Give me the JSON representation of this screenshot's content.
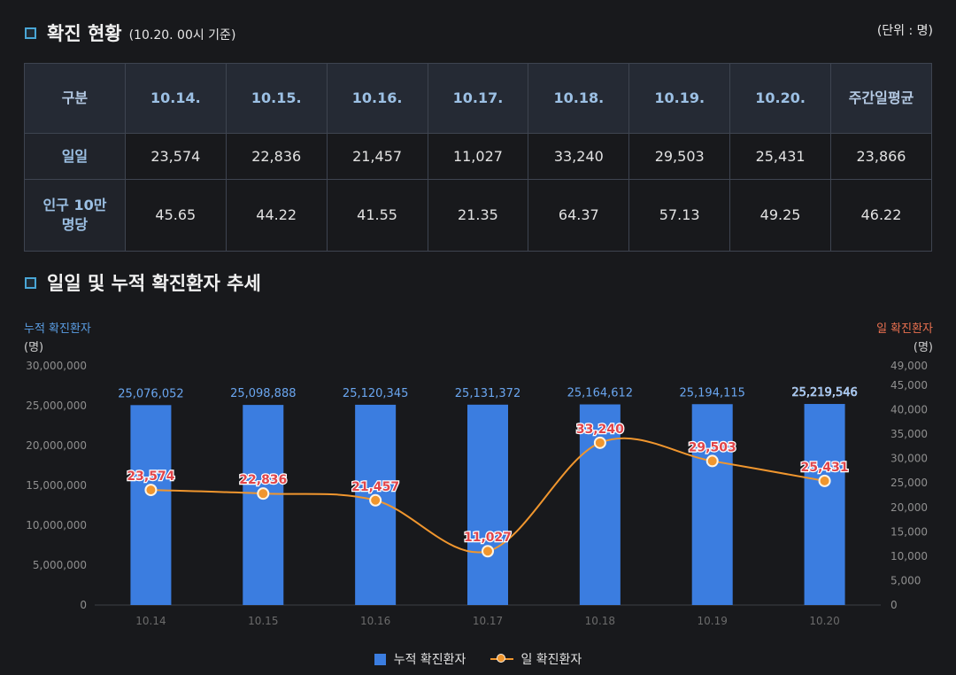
{
  "section1": {
    "title": "확진 현황",
    "subtitle": "(10.20. 00시 기준)",
    "unit": "(단위 : 명)"
  },
  "table": {
    "header": [
      "구분",
      "10.14.",
      "10.15.",
      "10.16.",
      "10.17.",
      "10.18.",
      "10.19.",
      "10.20.",
      "주간일평균"
    ],
    "rows": [
      {
        "label": "일일",
        "values": [
          "23,574",
          "22,836",
          "21,457",
          "11,027",
          "33,240",
          "29,503",
          "25,431",
          "23,866"
        ]
      },
      {
        "label": "인구 10만명당",
        "values": [
          "45.65",
          "44.22",
          "41.55",
          "21.35",
          "64.37",
          "57.13",
          "49.25",
          "46.22"
        ]
      }
    ]
  },
  "section2": {
    "title": "일일 및 누적 확진환자 추세"
  },
  "chart_data": {
    "type": "bar",
    "categories": [
      "10.14",
      "10.15",
      "10.16",
      "10.17",
      "10.18",
      "10.19",
      "10.20"
    ],
    "series": [
      {
        "name": "누적 확진환자",
        "type": "bar",
        "axis": "left",
        "values": [
          25076052,
          25098888,
          25120345,
          25131372,
          25164612,
          25194115,
          25219546
        ],
        "labels": [
          "25,076,052",
          "25,098,888",
          "25,120,345",
          "25,131,372",
          "25,164,612",
          "25,194,115",
          "25,219,546"
        ]
      },
      {
        "name": "일 확진환자",
        "type": "line",
        "axis": "right",
        "values": [
          23574,
          22836,
          21457,
          11027,
          33240,
          29503,
          25431
        ],
        "labels": [
          "23,574",
          "22,836",
          "21,457",
          "11,027",
          "33,240",
          "29,503",
          "25,431"
        ]
      }
    ],
    "y_left": {
      "title": "누적 확진환자",
      "unit": "(명)",
      "range": [
        0,
        30000000
      ],
      "ticks": [
        0,
        5000000,
        10000000,
        15000000,
        20000000,
        25000000,
        30000000
      ],
      "tick_labels": [
        "0",
        "5,000,000",
        "10,000,000",
        "15,000,000",
        "20,000,000",
        "25,000,000",
        "30,000,000"
      ]
    },
    "y_right": {
      "title": "일 확진환자",
      "unit": "(명)",
      "range": [
        0,
        49000
      ],
      "ticks": [
        0,
        5000,
        10000,
        15000,
        20000,
        25000,
        30000,
        35000,
        40000,
        45000,
        49000
      ],
      "tick_labels": [
        "0",
        "5,000",
        "10,000",
        "15,000",
        "20,000",
        "25,000",
        "30,000",
        "35,000",
        "40,000",
        "45,000",
        "49,000"
      ]
    },
    "legend": "bottom-center",
    "colors": {
      "bar": "#3b7de0",
      "line": "#f0962e",
      "bar_label": "#6aa6f0",
      "line_label": "#e0454a",
      "left_title": "#5b9fe6",
      "right_title": "#ea7150"
    }
  }
}
